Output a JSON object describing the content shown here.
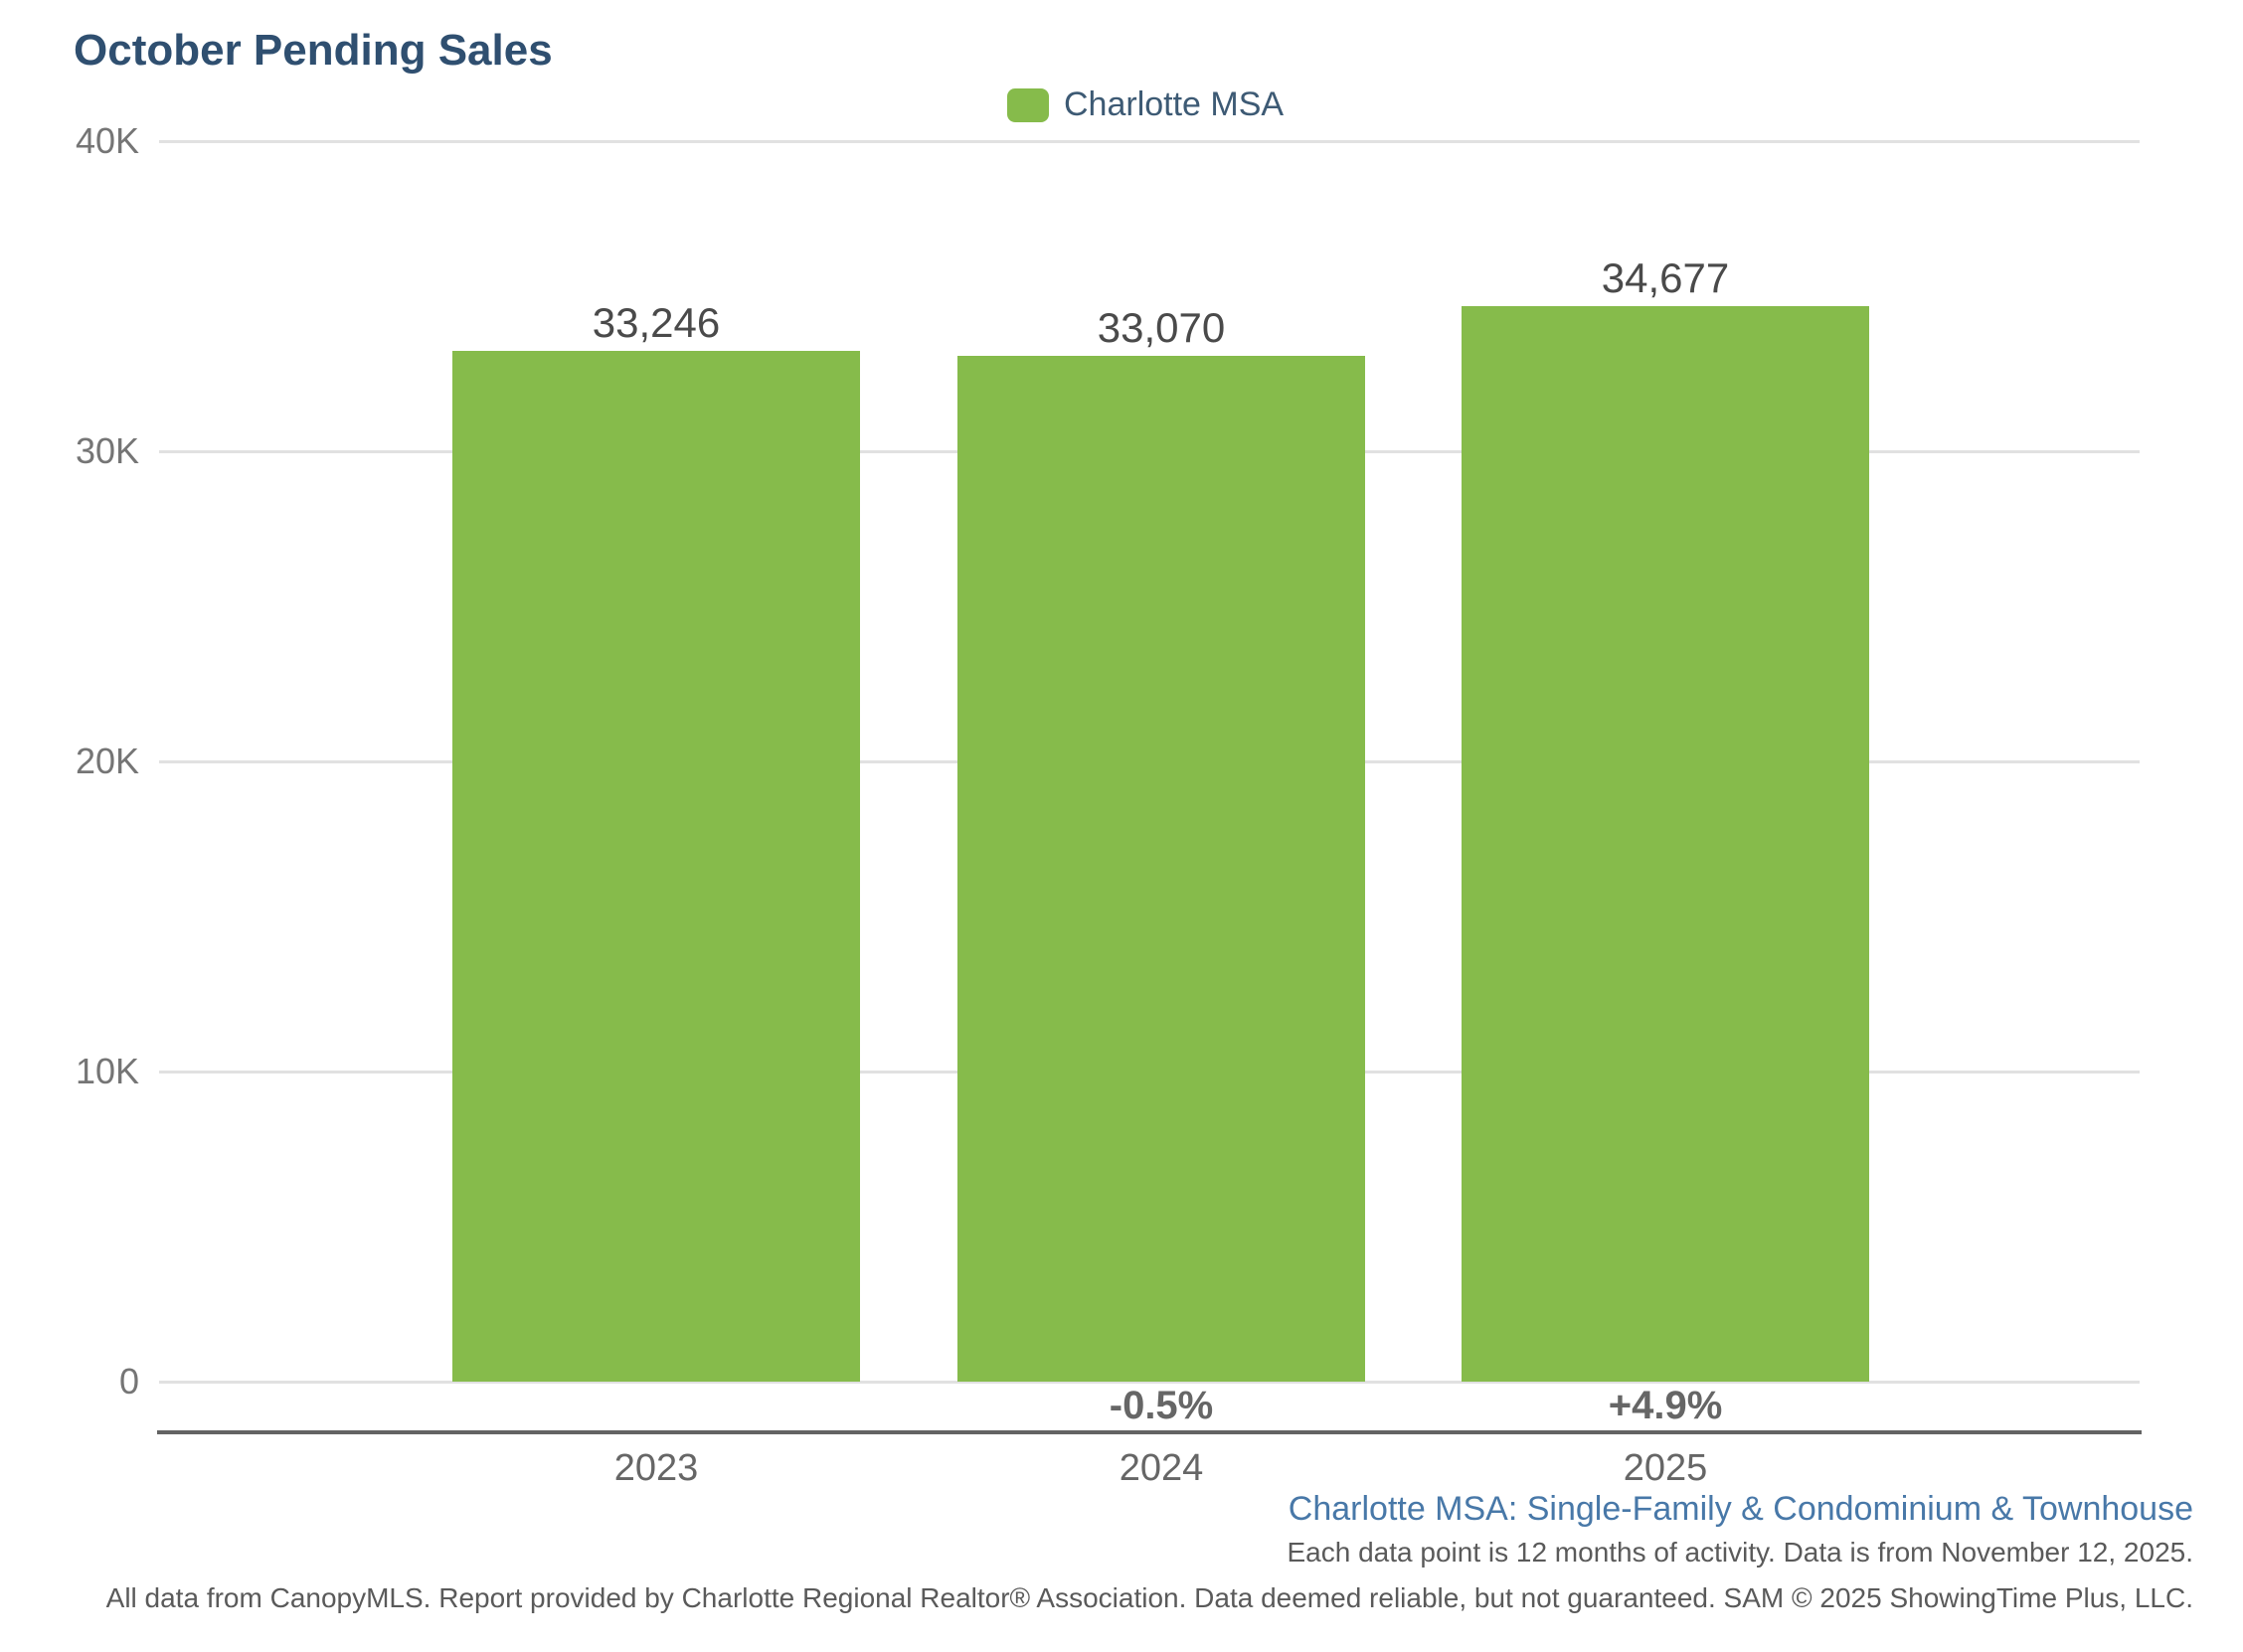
{
  "page_title": "October Pending Sales",
  "legend": {
    "label": "Charlotte MSA",
    "swatch_color": "#86BB4B"
  },
  "chart_data": {
    "type": "bar",
    "title": "October Pending Sales",
    "categories": [
      "2023",
      "2024",
      "2025"
    ],
    "series": [
      {
        "name": "Charlotte MSA",
        "color": "#86BB4B",
        "values": [
          33246,
          33070,
          34677
        ]
      }
    ],
    "value_labels": [
      "33,246",
      "33,070",
      "34,677"
    ],
    "change_labels": [
      "",
      "-0.5%",
      "+4.9%"
    ],
    "y_ticks": [
      {
        "value": 40000,
        "label": "40K"
      },
      {
        "value": 30000,
        "label": "30K"
      },
      {
        "value": 20000,
        "label": "20K"
      },
      {
        "value": 10000,
        "label": "10K"
      },
      {
        "value": 0,
        "label": "0"
      }
    ],
    "ylim": [
      0,
      40000
    ],
    "xlabel": "",
    "ylabel": "",
    "grid": true,
    "legend_position": "top-center"
  },
  "footnotes": {
    "segment": "Charlotte MSA: Single-Family & Condominium & Townhouse",
    "data_note": "Each data point is 12 months of activity. Data is from November 12, 2025.",
    "disclaimer": "All data from CanopyMLS. Report provided by Charlotte Regional Realtor® Association. Data deemed reliable, but not guaranteed. SAM © 2025 ShowingTime Plus, LLC."
  },
  "colors": {
    "title": "#2F4F70",
    "bar_green": "#86BB4B",
    "legend_text": "#3D5A74",
    "segment_note_blue": "#4878A8",
    "axis_text_gray": "#757575",
    "value_text_gray": "#4A4A4A",
    "gridline_gray": "#E1E1E1",
    "axis_line_gray": "#636363"
  }
}
